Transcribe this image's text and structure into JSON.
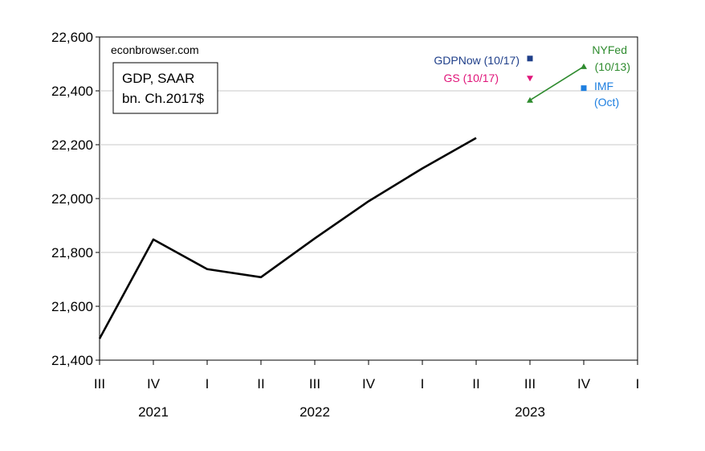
{
  "chart_data": {
    "type": "line",
    "watermark": "econbrowser.com",
    "legend_box": {
      "line1": "GDP, SAAR",
      "line2": "bn. Ch.2017$"
    },
    "ylim": [
      21400,
      22600
    ],
    "y_ticks": [
      21400,
      21600,
      21800,
      22000,
      22200,
      22400,
      22600
    ],
    "y_tick_labels": [
      "21,400",
      "21,600",
      "21,800",
      "22,000",
      "22,200",
      "22,400",
      "22,600"
    ],
    "x_ticks": [
      "III",
      "IV",
      "I",
      "II",
      "III",
      "IV",
      "I",
      "II",
      "III",
      "IV",
      "I"
    ],
    "x_year_labels": [
      {
        "label": "2021",
        "center": 1
      },
      {
        "label": "2022",
        "center": 4
      },
      {
        "label": "2023",
        "center": 8
      }
    ],
    "grid": true,
    "colors": {
      "gdp": "#000000",
      "gdpnow": "#1f3f8a",
      "gs": "#e0157a",
      "nyfed": "#2e8b2e",
      "imf": "#1e7fe0"
    },
    "series": [
      {
        "name": "GDP, SAAR",
        "x": [
          "2021Q3",
          "2021Q4",
          "2022Q1",
          "2022Q2",
          "2022Q3",
          "2022Q4",
          "2023Q1",
          "2023Q2"
        ],
        "idx": [
          0,
          1,
          2,
          3,
          4,
          5,
          6,
          7
        ],
        "values": [
          21480,
          21848,
          21738,
          21708,
          21852,
          21990,
          22112,
          22225
        ]
      },
      {
        "name": "GDPNow (10/17)",
        "x": [
          "2023Q3"
        ],
        "idx": [
          8
        ],
        "values": [
          22520
        ],
        "marker": "square"
      },
      {
        "name": "GS (10/17)",
        "x": [
          "2023Q3"
        ],
        "idx": [
          8
        ],
        "values": [
          22447
        ],
        "marker": "triangle-down"
      },
      {
        "name": "NYFed (10/13)",
        "x": [
          "2023Q3",
          "2023Q4"
        ],
        "idx": [
          8,
          9
        ],
        "values": [
          22365,
          22490
        ],
        "marker": "triangle-up"
      },
      {
        "name": "IMF (Oct)",
        "x": [
          "2023Q4"
        ],
        "idx": [
          9
        ],
        "values": [
          22410
        ],
        "marker": "square"
      }
    ],
    "annotations": {
      "gdpnow": "GDPNow (10/17)",
      "gs": "GS (10/17)",
      "nyfed_1": "NYFed",
      "nyfed_2": "(10/13)",
      "imf_1": "IMF",
      "imf_2": "(Oct)"
    }
  }
}
